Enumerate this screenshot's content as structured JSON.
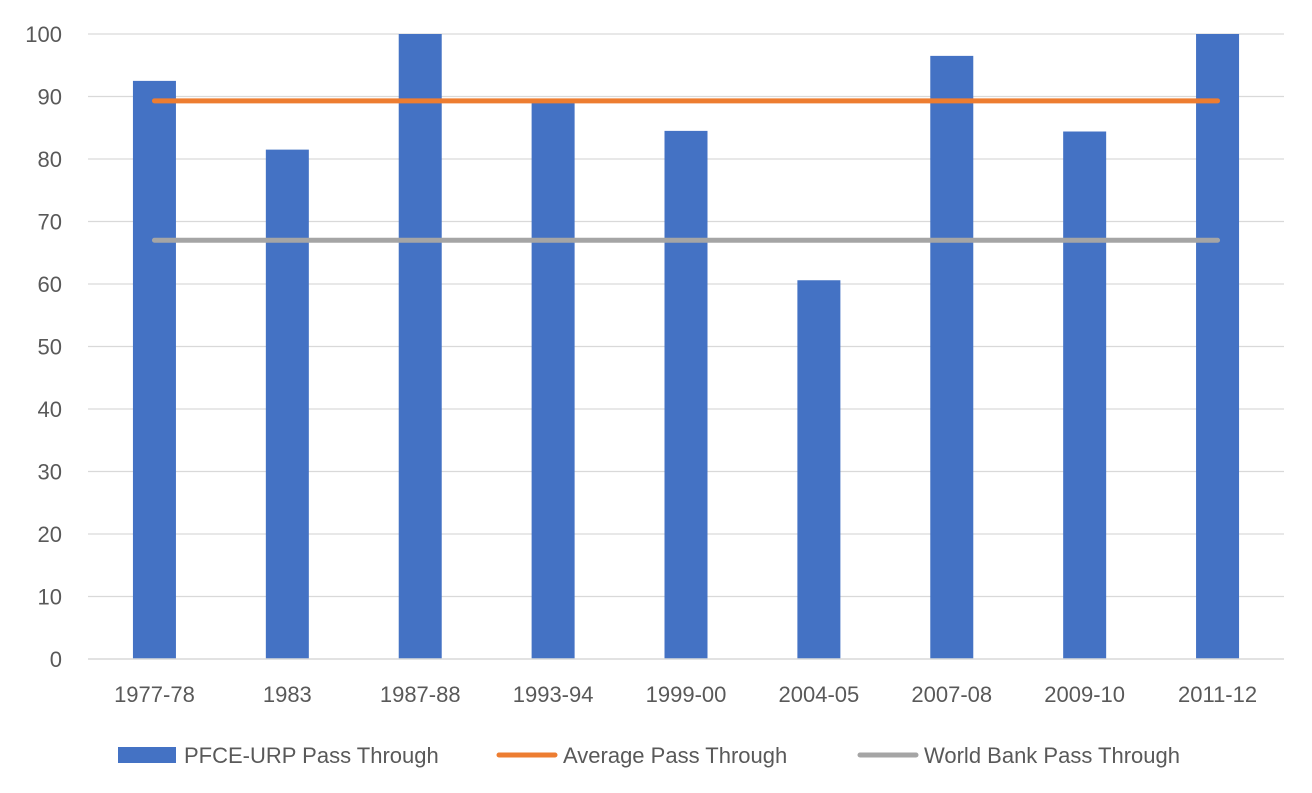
{
  "chart_data": {
    "type": "bar",
    "categories": [
      "1977-78",
      "1983",
      "1987-88",
      "1993-94",
      "1999-00",
      "2004-05",
      "2007-08",
      "2009-10",
      "2011-12"
    ],
    "series": [
      {
        "name": "PFCE-URP Pass Through",
        "type": "bar",
        "color": "#4472C4",
        "values": [
          92.5,
          81.5,
          100,
          89.5,
          84.5,
          60.6,
          96.5,
          84.4,
          100
        ]
      },
      {
        "name": "Average Pass Through",
        "type": "line",
        "color": "#ED7D31",
        "values": [
          89.3,
          89.3,
          89.3,
          89.3,
          89.3,
          89.3,
          89.3,
          89.3,
          89.3
        ]
      },
      {
        "name": "World Bank Pass Through",
        "type": "line",
        "color": "#A5A5A5",
        "values": [
          67,
          67,
          67,
          67,
          67,
          67,
          67,
          67,
          67
        ]
      }
    ],
    "title": "",
    "xlabel": "",
    "ylabel": "",
    "ylim": [
      0,
      100
    ],
    "yticks": [
      "0",
      "10",
      "20",
      "30",
      "40",
      "50",
      "60",
      "70",
      "80",
      "90",
      "100"
    ],
    "grid": true,
    "legend": "bottom",
    "gridColor": "#D9D9D9",
    "axisColor": "#D9D9D9"
  }
}
